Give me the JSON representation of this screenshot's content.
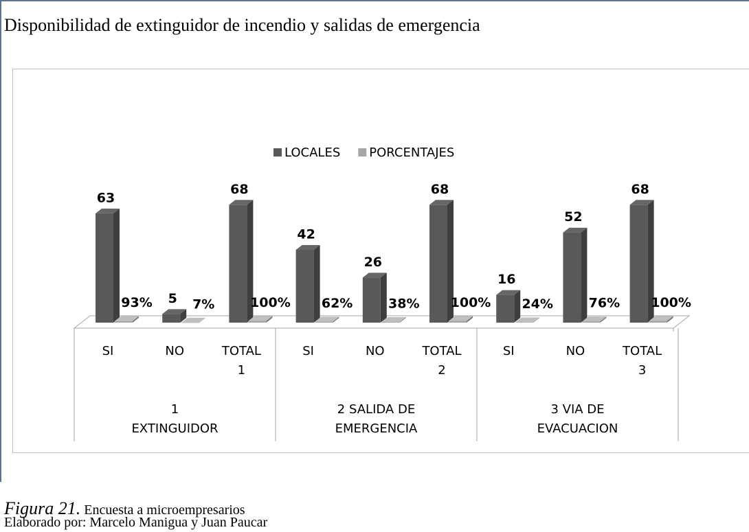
{
  "title": "Disponibilidad de extinguidor de incendio y salidas de emergencia",
  "chart_data": {
    "type": "bar3d",
    "categories": [
      "SI",
      "NO",
      "TOTAL 1",
      "SI",
      "NO",
      "TOTAL 2",
      "SI",
      "NO",
      "TOTAL 3"
    ],
    "groups": [
      "1 EXTINGUIDOR",
      "2 SALIDA DE EMERGENCIA",
      "3 VIA DE EVACUACION"
    ],
    "series": [
      {
        "name": "LOCALES",
        "color": "#595959",
        "values": [
          63,
          5,
          68,
          42,
          26,
          68,
          16,
          52,
          68
        ]
      },
      {
        "name": "PORCENTAJES",
        "color": "#a6a6a6",
        "values": [
          0.93,
          0.07,
          1,
          0.62,
          0.38,
          1,
          0.24,
          0.76,
          1
        ],
        "value_labels": [
          "93%",
          "7%",
          "100%",
          "62%",
          "38%",
          "100%",
          "24%",
          "76%",
          "100%"
        ]
      }
    ],
    "ylim": [
      0,
      80
    ],
    "legend": "top"
  },
  "caption": {
    "label": "Figura 21.",
    "text": "Encuesta a microempresarios"
  },
  "credit": "Elaborado por: Marcelo Manigua y Juan Paucar"
}
